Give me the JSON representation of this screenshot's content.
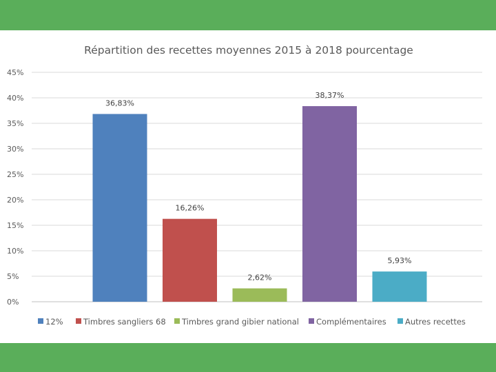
{
  "chart_data": {
    "type": "bar",
    "title": "Répartition des recettes moyennes  2015 à 2018 pourcentage",
    "xlabel": "",
    "ylabel": "",
    "ylim": [
      0,
      45
    ],
    "yticks": [
      0,
      5,
      10,
      15,
      20,
      25,
      30,
      35,
      40,
      45
    ],
    "ytick_labels": [
      "0%",
      "5%",
      "10%",
      "15%",
      "20%",
      "25%",
      "30%",
      "35%",
      "40%",
      "45%"
    ],
    "grid": true,
    "legend_position": "bottom",
    "categories": [
      "12%",
      "Timbres sangliers 68",
      "Timbres grand gibier national",
      "Complémentaires",
      "Autres recettes"
    ],
    "values": [
      36.83,
      16.26,
      2.62,
      38.37,
      5.93
    ],
    "data_labels": [
      "36,83%",
      "16,26%",
      "2,62%",
      "38,37%",
      "5,93%"
    ],
    "colors": [
      "#4f81bd",
      "#c0504d",
      "#9bbb59",
      "#8064a2",
      "#4bacc6"
    ]
  }
}
